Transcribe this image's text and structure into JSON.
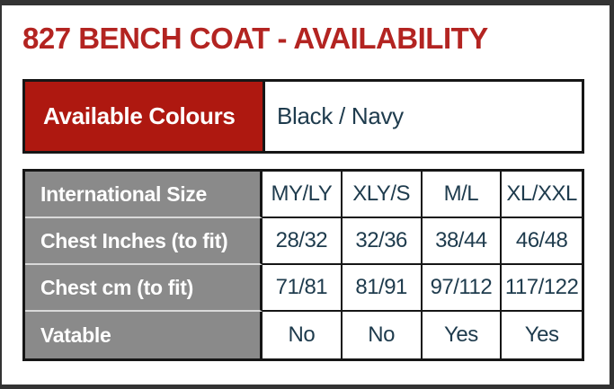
{
  "page": {
    "title": "827 BENCH COAT - AVAILABILITY"
  },
  "colors": {
    "title_red": "#b32421",
    "colours_header_red": "#ae1810",
    "size_label_gray": "#8a8a8a",
    "value_text_navy": "#1e3b4d",
    "table_border_dark": "#161616",
    "page_frame_dark": "#333333"
  },
  "colours_table": {
    "header_label": "Available Colours",
    "value": "Black / Navy"
  },
  "size_table": {
    "rows": [
      {
        "label": "International Size",
        "values": [
          "MY/LY",
          "XLY/S",
          "M/L",
          "XL/XXL"
        ]
      },
      {
        "label": "Chest Inches (to fit)",
        "values": [
          "28/32",
          "32/36",
          "38/44",
          "46/48"
        ]
      },
      {
        "label": "Chest cm (to fit)",
        "values": [
          "71/81",
          "81/91",
          "97/112",
          "117/122"
        ]
      },
      {
        "label": "Vatable",
        "values": [
          "No",
          "No",
          "Yes",
          "Yes"
        ]
      }
    ]
  }
}
